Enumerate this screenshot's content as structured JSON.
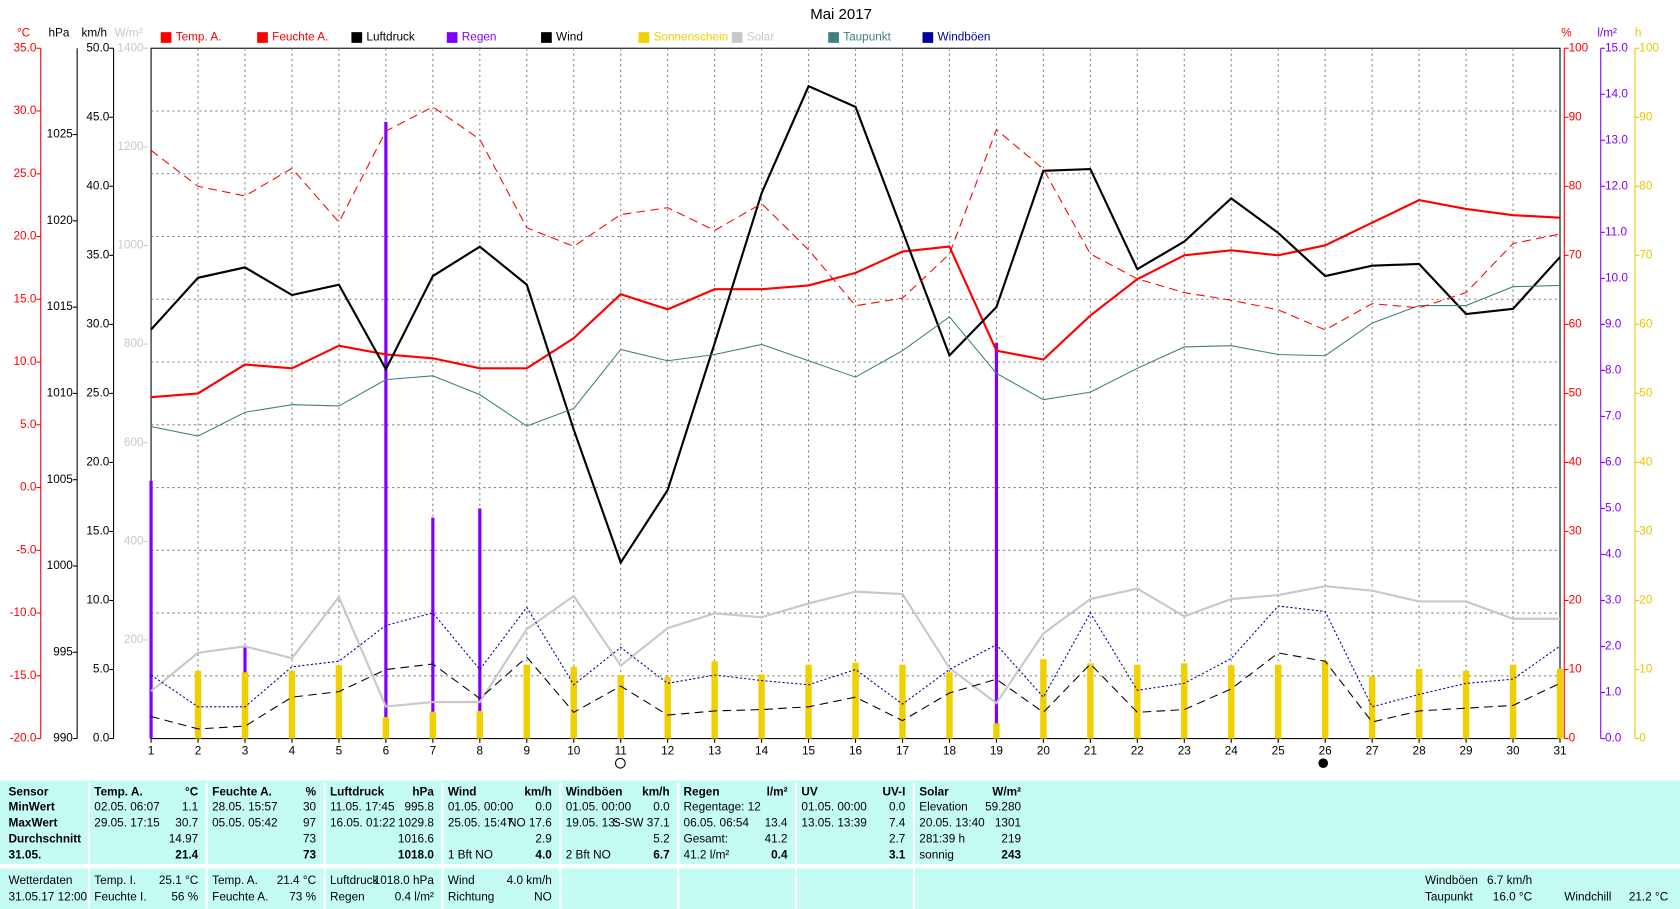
{
  "chart_data": {
    "type": "weather",
    "title": "Mai 2017",
    "categories": [
      "1",
      "2",
      "3",
      "4",
      "5",
      "6",
      "7",
      "8",
      "9",
      "10",
      "11",
      "12",
      "13",
      "14",
      "15",
      "16",
      "17",
      "18",
      "19",
      "20",
      "21",
      "22",
      "23",
      "24",
      "25",
      "26",
      "27",
      "28",
      "29",
      "30",
      "31"
    ],
    "grid": true,
    "axes": [
      {
        "unit": "°C",
        "color": "#ff0000",
        "ylim": [
          -20,
          35
        ],
        "yticks": [
          {
            "value": -20,
            "label": "-20.0"
          },
          {
            "value": -15,
            "label": "-15.0"
          },
          {
            "value": -10,
            "label": "-10.0"
          },
          {
            "value": -5,
            "label": "-5.0"
          },
          {
            "value": 0,
            "label": "0.0"
          },
          {
            "value": 5,
            "label": "5.0"
          },
          {
            "value": 10,
            "label": "10.0"
          },
          {
            "value": 15,
            "label": "15.0"
          },
          {
            "value": 20,
            "label": "20.0"
          },
          {
            "value": 25,
            "label": "25.0"
          },
          {
            "value": 30,
            "label": "30.0"
          },
          {
            "value": 35,
            "label": "35.0"
          }
        ]
      },
      {
        "unit": "hPa",
        "color": "#000000",
        "ylim": [
          990,
          1030
        ],
        "yticks": [
          990,
          995,
          1000,
          1005,
          1010,
          1015,
          1020,
          1025
        ]
      },
      {
        "unit": "km/h",
        "color": "#000000",
        "ylim": [
          0,
          50
        ],
        "yticks": [
          {
            "value": 0,
            "label": "0.0"
          },
          {
            "value": 5,
            "label": "5.0"
          },
          {
            "value": 10,
            "label": "10.0"
          },
          {
            "value": 15,
            "label": "15.0"
          },
          {
            "value": 20,
            "label": "20.0"
          },
          {
            "value": 25,
            "label": "25.0"
          },
          {
            "value": 30,
            "label": "30.0"
          },
          {
            "value": 35,
            "label": "35.0"
          },
          {
            "value": 40,
            "label": "40.0"
          },
          {
            "value": 45,
            "label": "45.0"
          },
          {
            "value": 50,
            "label": "50.0"
          }
        ]
      },
      {
        "unit": "W/m²",
        "color": "#c8c8c8",
        "ylim": [
          0,
          1400
        ],
        "yticks": [
          200,
          400,
          600,
          800,
          1000,
          1200,
          1400
        ]
      },
      {
        "unit": "%",
        "color": "#ff0000",
        "ylim": [
          0,
          100
        ],
        "yticks": [
          0,
          10,
          20,
          30,
          40,
          50,
          60,
          70,
          80,
          90,
          100
        ]
      },
      {
        "unit": "l/m²",
        "color": "#8000ff",
        "ylim": [
          0,
          15
        ],
        "yticks": [
          {
            "value": 0,
            "label": "0.0"
          },
          {
            "value": 1,
            "label": "1.0"
          },
          {
            "value": 2,
            "label": "2.0"
          },
          {
            "value": 3,
            "label": "3.0"
          },
          {
            "value": 4,
            "label": "4.0"
          },
          {
            "value": 5,
            "label": "5.0"
          },
          {
            "value": 6,
            "label": "6.0"
          },
          {
            "value": 7,
            "label": "7.0"
          },
          {
            "value": 8,
            "label": "8.0"
          },
          {
            "value": 9,
            "label": "9.0"
          },
          {
            "value": 10,
            "label": "10.0"
          },
          {
            "value": 11,
            "label": "11.0"
          },
          {
            "value": 12,
            "label": "12.0"
          },
          {
            "value": 13,
            "label": "13.0"
          },
          {
            "value": 14,
            "label": "14.0"
          },
          {
            "value": 15,
            "label": "15.0"
          }
        ]
      },
      {
        "unit": "h",
        "color": "#e8c800",
        "ylim": [
          0,
          100
        ],
        "yticks": [
          0,
          10,
          20,
          30,
          40,
          50,
          60,
          70,
          80,
          90,
          100
        ]
      }
    ],
    "series": [
      {
        "name": "Temp. A.",
        "color": "#ff0000",
        "style": "line",
        "axis": 0,
        "values": [
          7.2,
          7.5,
          9.8,
          9.5,
          11.3,
          10.6,
          10.3,
          9.5,
          9.5,
          11.9,
          15.4,
          14.2,
          15.8,
          15.8,
          16.1,
          17.1,
          18.8,
          19.2,
          10.9,
          10.2,
          13.7,
          16.6,
          18.5,
          18.9,
          18.5,
          19.3,
          21.1,
          22.9,
          22.2,
          21.7,
          21.5
        ]
      },
      {
        "name": "Feuchte A.",
        "color": "#ff0000",
        "style": "dashed",
        "axis": 4,
        "values": [
          85.2,
          80,
          78.6,
          82.6,
          74.8,
          88,
          91.5,
          86.8,
          74,
          71.3,
          75.9,
          76.9,
          73.6,
          77.5,
          70.8,
          62.7,
          63.8,
          70.2,
          88.2,
          82.5,
          70.2,
          66.6,
          64.6,
          63.5,
          62.1,
          59.2,
          63,
          62.4,
          64.6,
          71.7,
          73.1
        ]
      },
      {
        "name": "Luftdruck",
        "color": "#000000",
        "style": "line",
        "axis": 1,
        "values": [
          1013.7,
          1016.7,
          1017.3,
          1015.7,
          1016.3,
          1011.4,
          1016.8,
          1018.5,
          1016.3,
          1007.9,
          1000.2,
          1004.4,
          1012.9,
          1021.6,
          1027.8,
          1026.6,
          1019.4,
          1012.2,
          1015,
          1022.9,
          1023,
          1017.2,
          1018.8,
          1021.3,
          1019.3,
          1016.8,
          1017.4,
          1017.5,
          1014.6,
          1014.9,
          1017.9
        ]
      },
      {
        "name": "Regen",
        "color": "#8000ff",
        "style": "bar",
        "axis": 5,
        "values": [
          5.6,
          0,
          2,
          0.65,
          0.2,
          13.4,
          4.8,
          5,
          0,
          0,
          0,
          0,
          0.2,
          0.2,
          0,
          0,
          0,
          0,
          8.6,
          0.2,
          0,
          0,
          0,
          0,
          0,
          0,
          0,
          0,
          0,
          0,
          0
        ]
      },
      {
        "name": "Wind",
        "color": "#000000",
        "style": "dashed",
        "axis": 2,
        "values": [
          1.6,
          0.7,
          0.9,
          3,
          3.4,
          5,
          5.4,
          2.9,
          5.9,
          1.9,
          3.8,
          1.7,
          2,
          2.1,
          2.3,
          3,
          1.3,
          3.3,
          4.3,
          1.9,
          5.4,
          1.9,
          2.1,
          3.6,
          6.2,
          5.6,
          1.2,
          2,
          2.2,
          2.4,
          4
        ]
      },
      {
        "name": "Sonnenschein",
        "color": "#f0d000",
        "style": "bar",
        "axis": 6,
        "values": [
          0,
          9.8,
          9.6,
          9.8,
          10.6,
          3.1,
          3.9,
          4,
          10.7,
          10.4,
          9.2,
          8.9,
          11.2,
          9.3,
          10.7,
          11,
          10.7,
          9.6,
          2.2,
          11.5,
          10.9,
          10.7,
          10.9,
          10.6,
          10.7,
          11.2,
          9,
          10.1,
          9.8,
          10.7,
          10.1
        ]
      },
      {
        "name": "Solar",
        "color": "#c8c8c8",
        "style": "line",
        "axis": 3,
        "values": [
          96,
          174,
          187,
          163,
          287,
          65,
          74,
          74,
          222,
          289,
          148,
          224,
          254,
          246,
          274,
          298,
          293,
          143,
          72,
          213,
          283,
          304,
          248,
          283,
          291,
          309,
          300,
          278,
          278,
          243,
          243
        ]
      },
      {
        "name": "Taupunkt",
        "color": "#408080",
        "style": "thin",
        "axis": 0,
        "values": [
          4.85,
          4.1,
          6,
          6.6,
          6.5,
          8.6,
          8.9,
          7.4,
          4.9,
          6.3,
          11,
          10.1,
          10.6,
          11.4,
          10.1,
          8.8,
          10.9,
          13.6,
          9.1,
          7,
          7.6,
          9.5,
          11.2,
          11.3,
          10.6,
          10.5,
          13.1,
          14.5,
          14.5,
          16,
          16.1
        ]
      },
      {
        "name": "Windböen",
        "color": "#0000a0",
        "style": "dotted",
        "axis": 2,
        "values": [
          4.6,
          2.3,
          2.3,
          5.2,
          5.6,
          8.2,
          9.1,
          5,
          9.5,
          3.9,
          6.6,
          4,
          4.6,
          4.2,
          3.9,
          5,
          2.5,
          5,
          6.8,
          3,
          9.1,
          3.5,
          4,
          5.8,
          9.6,
          9.2,
          2.3,
          3.2,
          4,
          4.3,
          6.7
        ]
      }
    ]
  },
  "stats": {
    "header": [
      {
        "left": "Sensor"
      },
      {
        "left": "Temp. A.",
        "right": "°C"
      },
      {
        "left": "Feuchte A.",
        "right": "%"
      },
      {
        "left": "Luftdruck",
        "right": "hPa"
      },
      {
        "left": "Wind",
        "right": "km/h"
      },
      {
        "left": "Windböen",
        "right": "km/h"
      },
      {
        "left": "Regen",
        "right": "l/m²"
      },
      {
        "left": "UV",
        "right": "UV-I"
      },
      {
        "left": "Solar",
        "right": "W/m²"
      }
    ],
    "rows": [
      {
        "label": "MinWert",
        "cells": [
          {
            "left": "02.05.  06:07",
            "right": "1.1"
          },
          {
            "left": "28.05.  15:57",
            "right": "30"
          },
          {
            "left": "11.05.  17:45",
            "right": "995.8"
          },
          {
            "left": "01.05.  00:00",
            "right": "0.0"
          },
          {
            "left": "01.05.  00:00",
            "right": "0.0"
          },
          {
            "left": "Regentage: 12"
          },
          {
            "left": "01.05.  00:00",
            "right": "0.0"
          },
          {
            "left": "Elevation",
            "right": "59.280"
          }
        ]
      },
      {
        "label": "MaxWert",
        "cells": [
          {
            "left": "29.05.  17:15",
            "right": "30.7"
          },
          {
            "left": "05.05.  05:42",
            "right": "97"
          },
          {
            "left": "16.05.  01:22",
            "right": "1029.8"
          },
          {
            "left": "25.05.  15:47",
            "right": "NO 17.6"
          },
          {
            "left": "19.05.  13:",
            "right": "S-SW 37.1"
          },
          {
            "left": "06.05.  06:54",
            "right": "13.4"
          },
          {
            "left": "13.05.  13:39",
            "right": "7.4"
          },
          {
            "left": "20.05.  13:40",
            "right": "1301"
          }
        ]
      },
      {
        "label": "Durchschnitt",
        "cells": [
          {
            "right": "14.97"
          },
          {
            "right": "73"
          },
          {
            "right": "1016.6"
          },
          {
            "right": "2.9"
          },
          {
            "right": "5.2"
          },
          {
            "left": "Gesamt:",
            "right": "41.2"
          },
          {
            "right": "2.7"
          },
          {
            "left": "281:39 h",
            "right": "219"
          }
        ]
      },
      {
        "label": "31.05.",
        "cells": [
          {
            "right": "21.4"
          },
          {
            "right": "73"
          },
          {
            "right": "1018.0"
          },
          {
            "left": "1 Bft NO",
            "right": "4.0"
          },
          {
            "left": "2 Bft NO",
            "right": "6.7"
          },
          {
            "left": "41.2 l/m²",
            "right": "0.4"
          },
          {
            "right": "3.1"
          },
          {
            "left": "sonnig",
            "right": "243"
          }
        ]
      }
    ]
  },
  "current": [
    [
      {
        "left": "Wetterdaten"
      },
      {
        "left": "31.05.17 12:00"
      }
    ],
    [
      {
        "left": "Temp. I.",
        "right": "25.1 °C"
      },
      {
        "left": "Feuchte I.",
        "right": "56 %"
      }
    ],
    [
      {
        "left": "Temp. A.",
        "right": "21.4 °C"
      },
      {
        "left": "Feuchte A.",
        "right": "73 %"
      }
    ],
    [
      {
        "left": "Luftdruck",
        "right": "1018.0 hPa"
      },
      {
        "left": "Regen",
        "right": "0.4 l/m²"
      }
    ],
    [
      {
        "left": "Wind",
        "right": "4.0 km/h"
      },
      {
        "left": "Richtung",
        "right": "NO"
      }
    ],
    [
      {
        "left": "Windböen",
        "right": "6.7 km/h"
      },
      {
        "left": "Taupunkt",
        "right": "16.0 °C"
      }
    ],
    [
      {
        "left": "Windchill",
        "right": "21.2 °C"
      }
    ]
  ]
}
